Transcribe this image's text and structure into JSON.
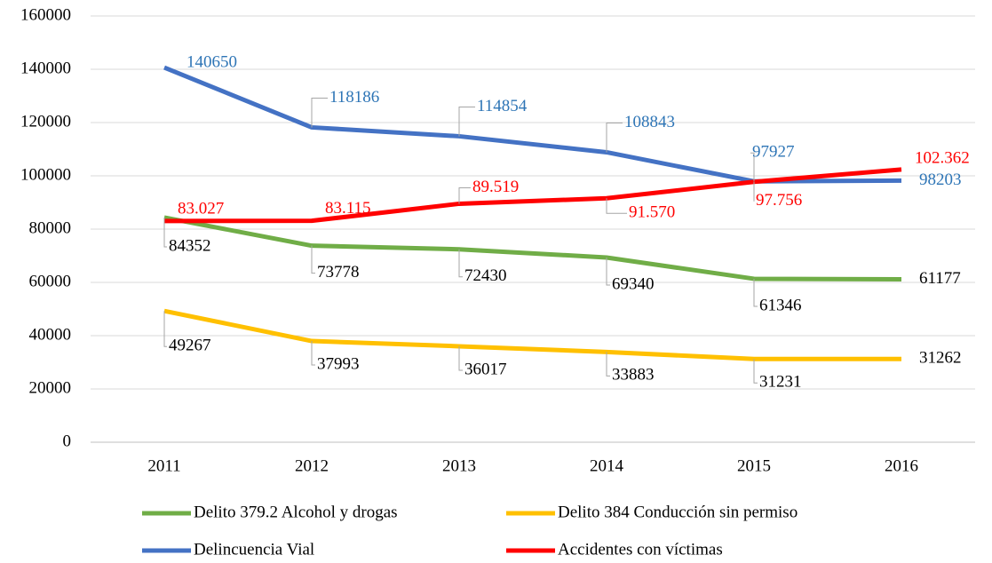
{
  "chart_data": {
    "type": "line",
    "categories": [
      "2011",
      "2012",
      "2013",
      "2014",
      "2015",
      "2016"
    ],
    "series": [
      {
        "name": "Delito 379.2 Alcohol y drogas",
        "color": "#70ad47",
        "values": [
          84352,
          73778,
          72430,
          69340,
          61346,
          61177
        ]
      },
      {
        "name": "Delito 384 Conducción sin permiso",
        "color": "#ffc000",
        "values": [
          49267,
          37993,
          36017,
          33883,
          31231,
          31262
        ]
      },
      {
        "name": "Delincuencia Vial",
        "color": "#4472c4",
        "values": [
          140650,
          118186,
          114854,
          108843,
          97927,
          98203
        ]
      },
      {
        "name": "Accidentes con víctimas",
        "color": "#ff0000",
        "values": [
          83027,
          83115,
          89519,
          91570,
          97756,
          102362
        ],
        "value_labels": [
          "83.027",
          "83.115",
          "89.519",
          "91.570",
          "97.756",
          "102.362"
        ]
      }
    ],
    "ylim": [
      0,
      160000
    ],
    "yticks": [
      0,
      20000,
      40000,
      60000,
      80000,
      100000,
      120000,
      140000,
      160000
    ],
    "grid": true,
    "legend": "bottom"
  }
}
